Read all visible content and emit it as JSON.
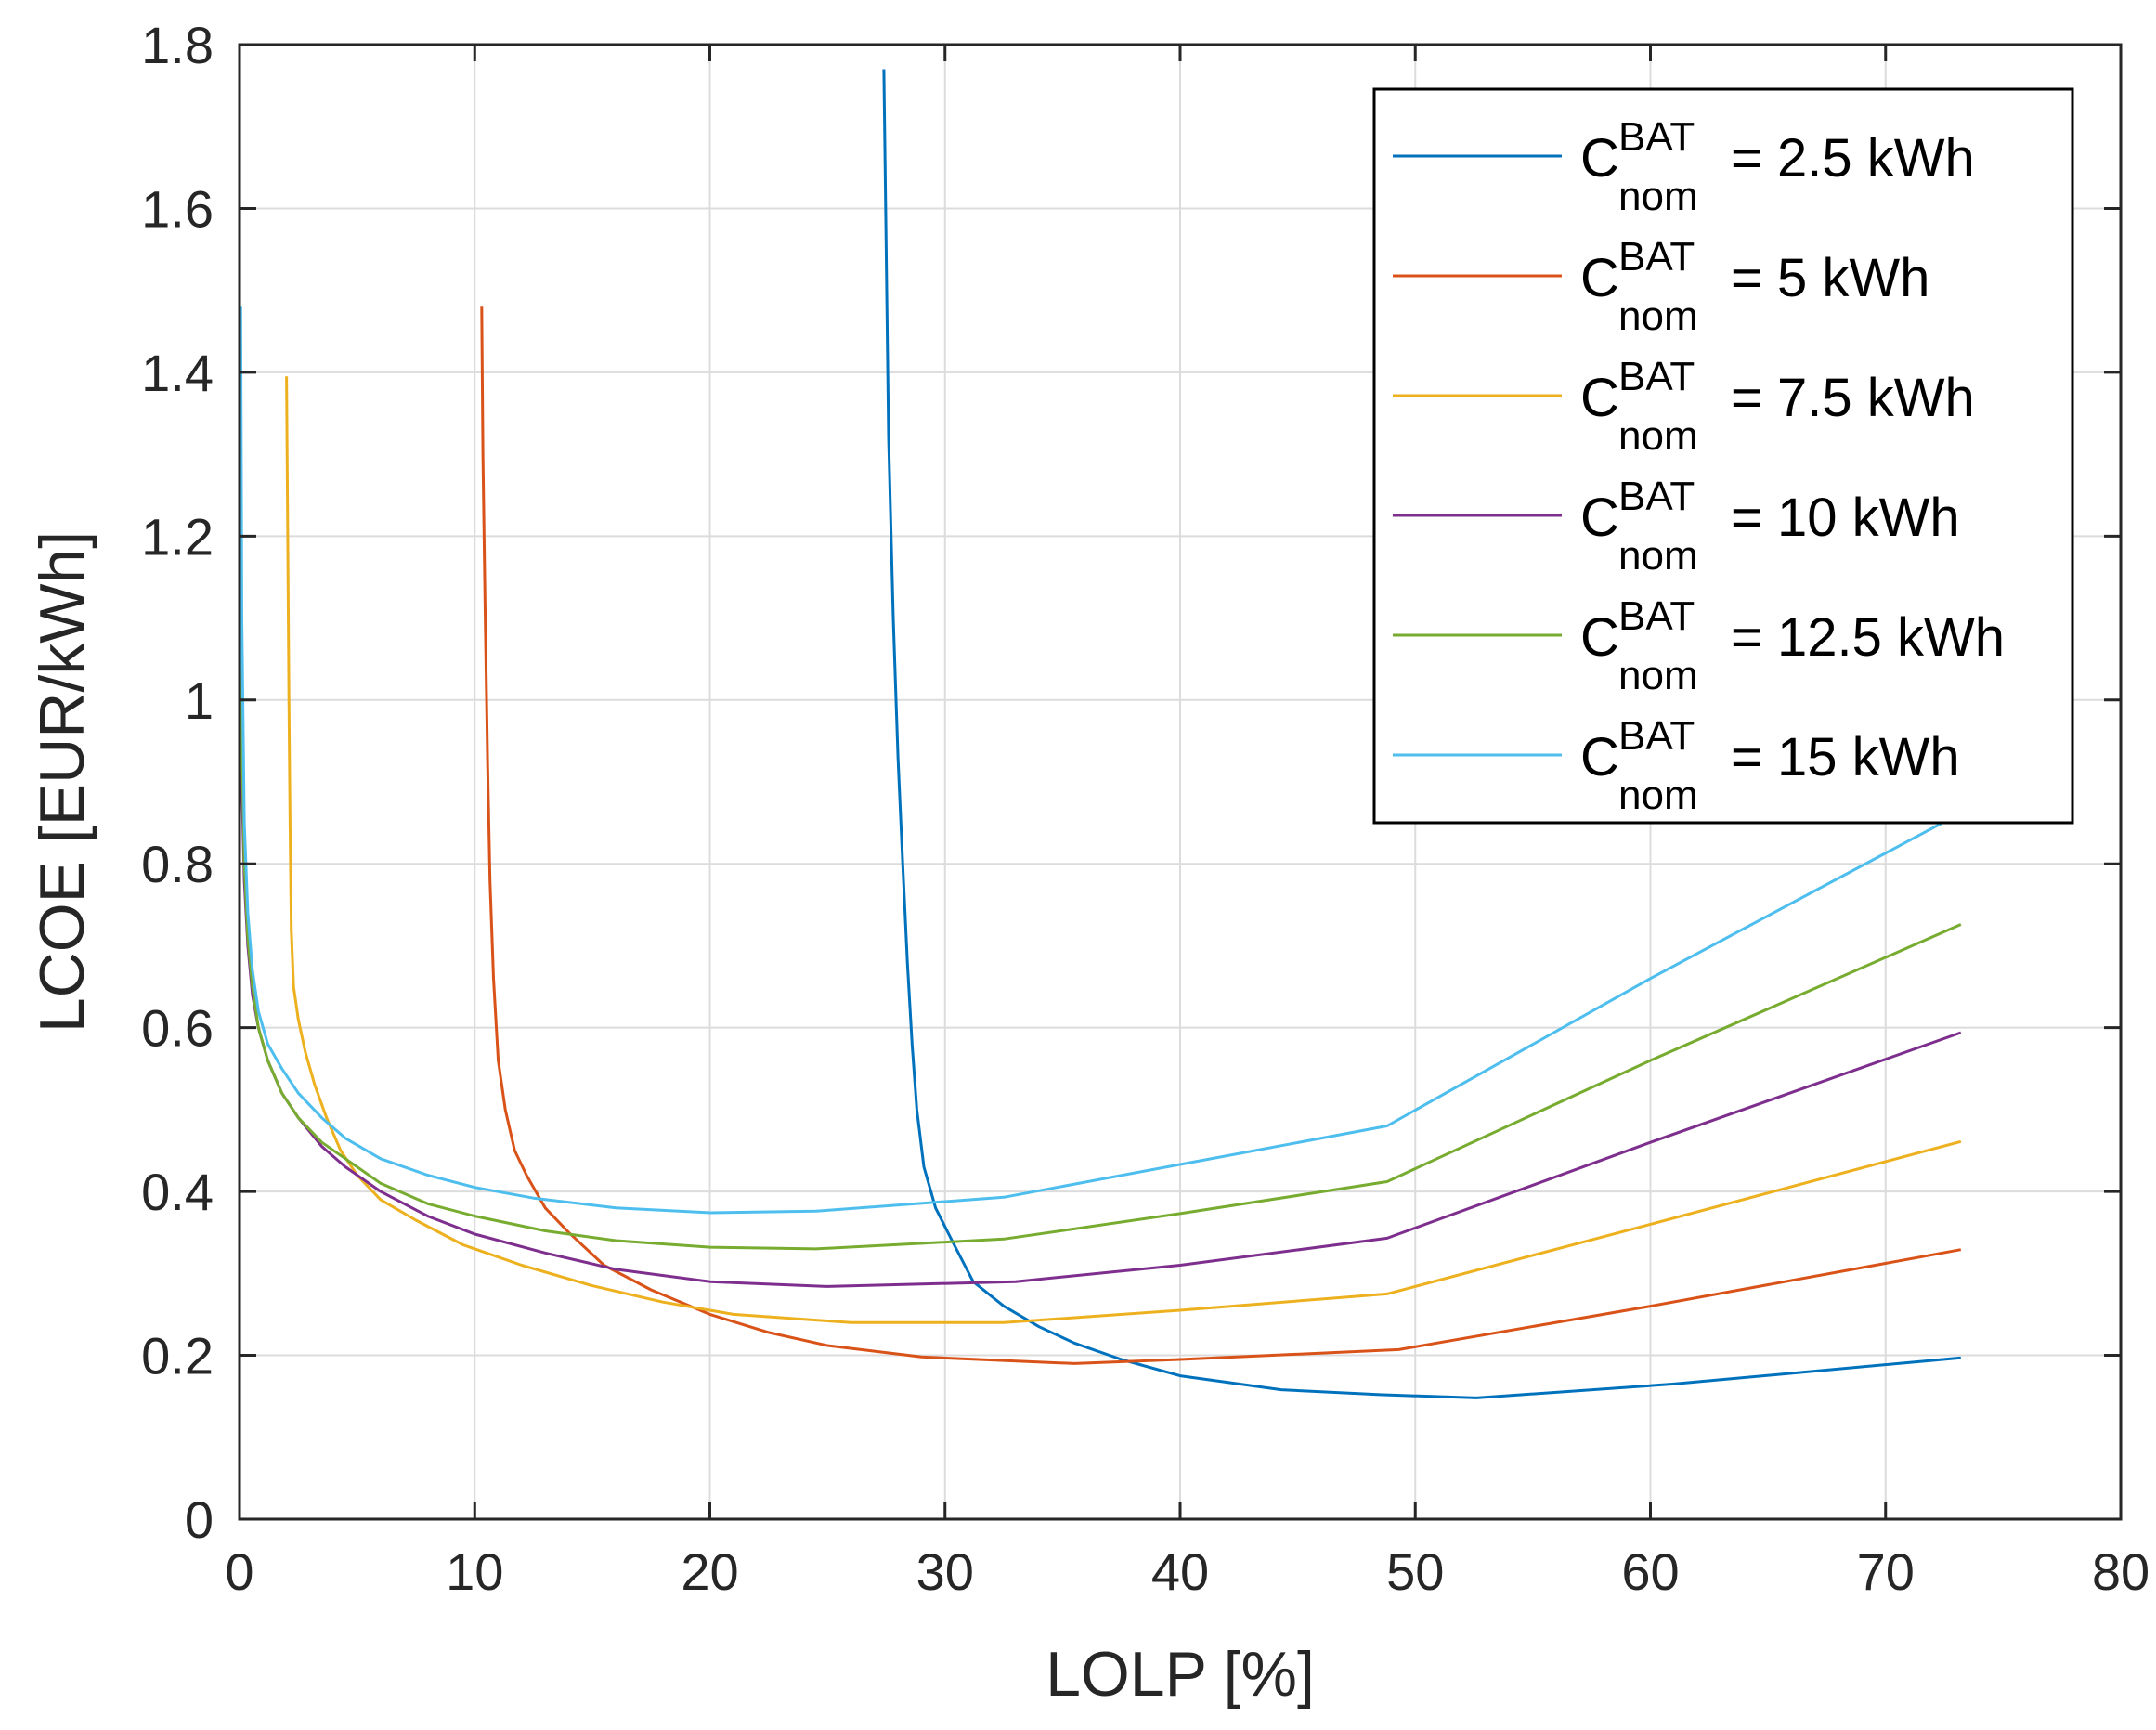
{
  "chart_data": {
    "type": "line",
    "title": "",
    "xlabel": "LOLP [%]",
    "ylabel": "LCOE [EUR/kWh]",
    "xlim": [
      0,
      80
    ],
    "ylim": [
      0,
      1.8
    ],
    "xticks": [
      0,
      10,
      20,
      30,
      40,
      50,
      60,
      70,
      80
    ],
    "xtick_labels": [
      "0",
      "10",
      "20",
      "30",
      "40",
      "50",
      "60",
      "70",
      "80"
    ],
    "yticks": [
      0,
      0.2,
      0.4,
      0.6,
      0.8,
      1.0,
      1.2,
      1.4,
      1.6,
      1.8
    ],
    "ytick_labels": [
      "0",
      "0.2",
      "0.4",
      "0.6",
      "0.8",
      "1",
      "1.2",
      "1.4",
      "1.6",
      "1.8"
    ],
    "grid": true,
    "legend_position": "top-right",
    "series": [
      {
        "name": "C^BAT_nom = 2.5 kWh",
        "legend_base": "C",
        "legend_sup": "BAT",
        "legend_sub": "nom",
        "legend_value": "= 2.5 kWh",
        "color": "#0072BD",
        "x": [
          27.4,
          27.5,
          27.6,
          27.8,
          28.0,
          28.2,
          28.4,
          28.6,
          28.8,
          29.1,
          29.6,
          30.3,
          31.2,
          32.5,
          34.0,
          35.5,
          37.5,
          40.0,
          44.3,
          48.5,
          52.6,
          61.0,
          73.2
        ],
        "y": [
          1.77,
          1.55,
          1.32,
          1.1,
          0.93,
          0.8,
          0.68,
          0.58,
          0.5,
          0.43,
          0.38,
          0.34,
          0.29,
          0.26,
          0.235,
          0.215,
          0.195,
          0.175,
          0.158,
          0.152,
          0.148,
          0.165,
          0.197
        ]
      },
      {
        "name": "C^BAT_nom = 5 kWh",
        "legend_base": "C",
        "legend_sup": "BAT",
        "legend_sub": "nom",
        "legend_value": "= 5 kWh",
        "color": "#D95319",
        "x": [
          10.3,
          10.35,
          10.45,
          10.55,
          10.65,
          10.8,
          11.0,
          11.3,
          11.7,
          12.2,
          13.0,
          14.0,
          15.5,
          17.5,
          20.0,
          22.5,
          25.0,
          29.0,
          35.5,
          40.0,
          49.3,
          60.0,
          73.2
        ],
        "y": [
          1.48,
          1.3,
          1.1,
          0.92,
          0.78,
          0.66,
          0.56,
          0.5,
          0.45,
          0.42,
          0.38,
          0.35,
          0.31,
          0.28,
          0.25,
          0.228,
          0.212,
          0.198,
          0.19,
          0.195,
          0.207,
          0.26,
          0.329
        ]
      },
      {
        "name": "C^BAT_nom = 7.5 kWh",
        "legend_base": "C",
        "legend_sup": "BAT",
        "legend_sub": "nom",
        "legend_value": "= 7.5 kWh",
        "color": "#EDB120",
        "x": [
          2.0,
          2.05,
          2.1,
          2.15,
          2.2,
          2.3,
          2.5,
          2.8,
          3.2,
          3.7,
          4.3,
          5.0,
          6.0,
          7.5,
          9.5,
          12.0,
          15.0,
          18.0,
          21.0,
          24.5,
          26.0,
          32.5,
          40.0,
          48.8,
          60.0,
          73.2
        ],
        "y": [
          1.395,
          1.2,
          1.0,
          0.85,
          0.72,
          0.65,
          0.61,
          0.57,
          0.53,
          0.49,
          0.45,
          0.42,
          0.39,
          0.365,
          0.335,
          0.31,
          0.285,
          0.265,
          0.25,
          0.243,
          0.24,
          0.24,
          0.255,
          0.275,
          0.36,
          0.461
        ]
      },
      {
        "name": "C^BAT_nom = 10 kWh",
        "legend_base": "C",
        "legend_sup": "BAT",
        "legend_sub": "nom",
        "legend_value": "= 10 kWh",
        "color": "#7E2F8E",
        "x": [
          0.05,
          0.1,
          0.2,
          0.35,
          0.55,
          0.8,
          1.2,
          1.8,
          2.5,
          3.5,
          4.5,
          6.0,
          8.0,
          10.0,
          13.0,
          16.0,
          20.0,
          25.0,
          33.0,
          40.0,
          48.8,
          60.0,
          73.2
        ],
        "y": [
          1.2,
          0.9,
          0.78,
          0.7,
          0.64,
          0.6,
          0.56,
          0.52,
          0.49,
          0.455,
          0.43,
          0.4,
          0.37,
          0.348,
          0.325,
          0.305,
          0.29,
          0.284,
          0.29,
          0.31,
          0.343,
          0.46,
          0.594
        ]
      },
      {
        "name": "C^BAT_nom = 12.5 kWh",
        "legend_base": "C",
        "legend_sup": "BAT",
        "legend_sub": "nom",
        "legend_value": "= 12.5 kWh",
        "color": "#77AC30",
        "x": [
          0.05,
          0.1,
          0.2,
          0.35,
          0.55,
          0.8,
          1.2,
          1.8,
          2.5,
          3.5,
          4.5,
          6.0,
          8.0,
          10.0,
          13.0,
          16.0,
          20.0,
          24.5,
          32.5,
          40.0,
          48.8,
          60.0,
          73.2
        ],
        "y": [
          1.25,
          0.95,
          0.8,
          0.71,
          0.65,
          0.6,
          0.56,
          0.52,
          0.49,
          0.46,
          0.44,
          0.41,
          0.385,
          0.37,
          0.352,
          0.34,
          0.332,
          0.33,
          0.342,
          0.373,
          0.412,
          0.56,
          0.726
        ]
      },
      {
        "name": "C^BAT_nom = 15 kWh",
        "legend_base": "C",
        "legend_sup": "BAT",
        "legend_sub": "nom",
        "legend_value": "= 15 kWh",
        "color": "#4DBEEE",
        "x": [
          0.05,
          0.1,
          0.2,
          0.35,
          0.55,
          0.8,
          1.2,
          1.8,
          2.5,
          3.5,
          4.5,
          6.0,
          8.0,
          10.0,
          12.5,
          16.0,
          20.0,
          24.5,
          32.5,
          40.0,
          48.8,
          60.0,
          73.2
        ],
        "y": [
          1.48,
          1.1,
          0.85,
          0.74,
          0.67,
          0.62,
          0.58,
          0.55,
          0.52,
          0.49,
          0.465,
          0.44,
          0.42,
          0.405,
          0.392,
          0.38,
          0.374,
          0.376,
          0.393,
          0.433,
          0.48,
          0.66,
          0.862
        ]
      }
    ]
  }
}
